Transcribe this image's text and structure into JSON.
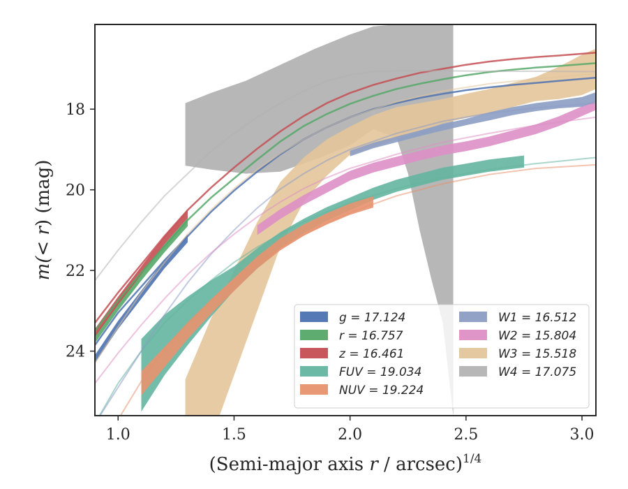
{
  "chart_data": {
    "type": "line",
    "xlabel_main": "(Semi-major axis ",
    "xlabel_var": "r",
    "xlabel_unit": " / arcsec)",
    "xlabel_exp": "1/4",
    "ylabel_main": "m(< ",
    "ylabel_var": "r",
    "ylabel_unit": ") (mag)",
    "xlim": [
      0.9,
      3.06
    ],
    "ylim": [
      25.6,
      15.9
    ],
    "y_inverted": true,
    "xticks": [
      1.0,
      1.5,
      2.0,
      2.5,
      3.0
    ],
    "xtick_labels": [
      "1.0",
      "1.5",
      "2.0",
      "2.5",
      "3.0"
    ],
    "yticks": [
      18,
      20,
      22,
      24
    ],
    "ytick_labels": [
      "18",
      "20",
      "22",
      "24"
    ],
    "grid": false,
    "legend_placement": "lower-right",
    "series": [
      {
        "key": "g",
        "name": "g = 17.124",
        "color": "#4c72b0",
        "fit": {
          "x": [
            0.9,
            1.0,
            1.1,
            1.2,
            1.3,
            1.4,
            1.5,
            1.6,
            1.7,
            1.8,
            1.9,
            2.0,
            2.1,
            2.2,
            2.3,
            2.4,
            2.5,
            2.6,
            2.7,
            2.8,
            2.9,
            3.06
          ],
          "y": [
            23.85,
            23.05,
            22.4,
            21.75,
            21.15,
            20.55,
            20.02,
            19.55,
            19.12,
            18.75,
            18.45,
            18.2,
            18.0,
            17.85,
            17.72,
            17.62,
            17.53,
            17.46,
            17.4,
            17.35,
            17.3,
            17.22
          ]
        },
        "band_x": [
          0.9,
          1.0,
          1.1,
          1.2,
          1.3
        ],
        "band_mid": [
          24.2,
          23.35,
          22.6,
          21.85,
          21.2
        ],
        "band_err": [
          0.1,
          0.1,
          0.1,
          0.1,
          0.1
        ]
      },
      {
        "key": "r",
        "name": "r = 16.757",
        "color": "#55a868",
        "fit": {
          "x": [
            0.9,
            1.0,
            1.1,
            1.2,
            1.3,
            1.4,
            1.5,
            1.6,
            1.7,
            1.8,
            1.9,
            2.0,
            2.1,
            2.2,
            2.3,
            2.4,
            2.5,
            2.6,
            2.7,
            2.8,
            2.9,
            3.06
          ],
          "y": [
            23.5,
            22.75,
            22.05,
            21.4,
            20.75,
            20.2,
            19.72,
            19.25,
            18.8,
            18.42,
            18.12,
            17.87,
            17.67,
            17.5,
            17.37,
            17.26,
            17.16,
            17.08,
            17.02,
            16.97,
            16.93,
            16.86
          ]
        },
        "band_x": [
          0.9,
          1.0,
          1.1,
          1.2,
          1.3
        ],
        "band_mid": [
          23.7,
          22.9,
          22.15,
          21.45,
          20.8
        ],
        "band_err": [
          0.1,
          0.1,
          0.1,
          0.1,
          0.1
        ]
      },
      {
        "key": "z",
        "name": "z = 16.461",
        "color": "#c44e52",
        "fit": {
          "x": [
            0.9,
            1.0,
            1.1,
            1.2,
            1.3,
            1.4,
            1.5,
            1.6,
            1.7,
            1.8,
            1.9,
            2.0,
            2.1,
            2.2,
            2.3,
            2.4,
            2.5,
            2.6,
            2.7,
            2.8,
            2.9,
            3.06
          ],
          "y": [
            23.3,
            22.55,
            21.85,
            21.15,
            20.5,
            19.95,
            19.45,
            18.98,
            18.55,
            18.17,
            17.85,
            17.6,
            17.4,
            17.24,
            17.1,
            17.0,
            16.9,
            16.82,
            16.76,
            16.71,
            16.67,
            16.6
          ]
        },
        "band_x": [
          0.9,
          1.0,
          1.1,
          1.2,
          1.3
        ],
        "band_mid": [
          23.55,
          22.75,
          22.0,
          21.25,
          20.6
        ],
        "band_err": [
          0.1,
          0.1,
          0.1,
          0.1,
          0.1
        ]
      },
      {
        "key": "FUV",
        "name": "FUV = 19.034",
        "color": "#64b5a0",
        "fit": {
          "x": [
            0.9,
            1.0,
            1.1,
            1.2,
            1.3,
            1.4,
            1.5,
            1.6,
            1.7,
            1.8,
            1.9,
            2.0,
            2.2,
            2.4,
            2.6,
            2.8,
            3.06
          ],
          "y": [
            25.8,
            24.8,
            24.0,
            23.3,
            22.75,
            22.25,
            21.8,
            21.42,
            21.1,
            20.8,
            20.55,
            20.32,
            19.97,
            19.7,
            19.5,
            19.35,
            19.2
          ]
        },
        "band_x": [
          1.1,
          1.2,
          1.3,
          1.4,
          1.5,
          1.6,
          1.7,
          1.8,
          1.9,
          2.0,
          2.1,
          2.2,
          2.3,
          2.4,
          2.5,
          2.6,
          2.75
        ],
        "band_mid": [
          24.6,
          23.85,
          23.25,
          22.7,
          22.2,
          21.7,
          21.25,
          20.9,
          20.6,
          20.35,
          20.1,
          19.9,
          19.75,
          19.6,
          19.5,
          19.4,
          19.3
        ],
        "band_err": [
          0.9,
          0.75,
          0.6,
          0.45,
          0.3,
          0.25,
          0.2,
          0.18,
          0.17,
          0.16,
          0.15,
          0.15,
          0.15,
          0.15,
          0.15,
          0.15,
          0.15
        ]
      },
      {
        "key": "NUV",
        "name": "NUV = 19.224",
        "color": "#e8926e",
        "fit": {
          "x": [
            1.0,
            1.1,
            1.2,
            1.3,
            1.4,
            1.5,
            1.6,
            1.7,
            1.8,
            1.9,
            2.0,
            2.2,
            2.4,
            2.6,
            2.8,
            3.06
          ],
          "y": [
            25.7,
            24.75,
            23.95,
            23.3,
            22.75,
            22.25,
            21.82,
            21.45,
            21.12,
            20.82,
            20.56,
            20.15,
            19.85,
            19.62,
            19.47,
            19.38
          ]
        },
        "band_x": [
          1.1,
          1.2,
          1.3,
          1.4,
          1.5,
          1.6,
          1.7,
          1.8,
          1.9,
          2.0,
          2.1
        ],
        "band_mid": [
          24.8,
          24.15,
          23.5,
          22.9,
          22.35,
          21.8,
          21.35,
          21.0,
          20.72,
          20.48,
          20.3
        ],
        "band_err": [
          0.3,
          0.25,
          0.2,
          0.18,
          0.16,
          0.15,
          0.15,
          0.14,
          0.14,
          0.14,
          0.14
        ]
      },
      {
        "key": "W1",
        "name": "W1 = 16.512",
        "color": "#8c9dc4",
        "fit": {
          "x": [
            0.9,
            1.0,
            1.1,
            1.2,
            1.3,
            1.4,
            1.5,
            1.6,
            1.7,
            1.8,
            1.9,
            2.0,
            2.2,
            2.4,
            2.6,
            2.8,
            3.06
          ],
          "y": [
            25.8,
            24.9,
            24.0,
            23.1,
            22.3,
            21.6,
            21.0,
            20.45,
            19.98,
            19.6,
            19.27,
            19.0,
            18.6,
            18.3,
            18.1,
            17.97,
            17.85
          ]
        },
        "band_x": [
          2.0,
          2.1,
          2.2,
          2.3,
          2.4,
          2.5,
          2.6,
          2.7,
          2.8,
          2.9,
          3.0,
          3.06
        ],
        "band_mid": [
          19.1,
          18.9,
          18.75,
          18.6,
          18.45,
          18.32,
          18.18,
          18.05,
          17.95,
          17.88,
          17.82,
          17.7
        ],
        "band_err": [
          0.07,
          0.07,
          0.07,
          0.07,
          0.08,
          0.08,
          0.1,
          0.1,
          0.1,
          0.1,
          0.12,
          0.12
        ]
      },
      {
        "key": "W2",
        "name": "W2 = 15.804",
        "color": "#dd8fc5",
        "fit": {
          "x": [
            0.9,
            1.0,
            1.1,
            1.2,
            1.3,
            1.4,
            1.5,
            1.6,
            1.7,
            1.8,
            1.9,
            2.0,
            2.2,
            2.4,
            2.6,
            2.8,
            3.06
          ],
          "y": [
            24.8,
            24.05,
            23.35,
            22.7,
            22.1,
            21.57,
            21.1,
            20.67,
            20.3,
            19.97,
            19.7,
            19.47,
            19.12,
            18.82,
            18.6,
            18.4,
            18.2
          ]
        },
        "band_x": [
          1.6,
          1.7,
          1.8,
          1.9,
          2.0,
          2.1,
          2.2,
          2.3,
          2.4,
          2.5,
          2.6,
          2.7,
          2.8,
          2.9,
          3.0,
          3.06
        ],
        "band_mid": [
          21.0,
          20.6,
          20.25,
          19.95,
          19.65,
          19.45,
          19.3,
          19.15,
          19.02,
          18.92,
          18.8,
          18.65,
          18.5,
          18.3,
          18.05,
          17.9
        ],
        "band_err": [
          0.12,
          0.12,
          0.12,
          0.12,
          0.12,
          0.12,
          0.12,
          0.12,
          0.12,
          0.12,
          0.12,
          0.12,
          0.12,
          0.12,
          0.12,
          0.12
        ]
      },
      {
        "key": "W3",
        "name": "W3 = 15.518",
        "color": "#e3c59a",
        "fit": {
          "x": [
            0.9,
            1.0,
            1.1,
            1.2,
            1.3,
            1.4,
            1.5,
            1.6,
            1.7,
            1.8,
            1.9,
            2.0,
            2.2,
            2.4,
            2.6,
            2.8,
            3.06
          ],
          "y": [
            24.3,
            23.4,
            22.55,
            21.8,
            21.1,
            20.5,
            19.97,
            19.5,
            19.1,
            18.75,
            18.45,
            18.2,
            17.82,
            17.55,
            17.37,
            17.25,
            17.12
          ]
        },
        "band_x": [
          1.29,
          1.4,
          1.5,
          1.6,
          1.7,
          1.8,
          1.9,
          2.0,
          2.1,
          2.2,
          2.3,
          2.4,
          2.5,
          2.6,
          2.7,
          2.8,
          2.9,
          3.0,
          3.06
        ],
        "band_mid": [
          26.2,
          24.7,
          23.3,
          21.9,
          20.6,
          19.75,
          19.2,
          18.78,
          18.55,
          18.35,
          18.2,
          18.05,
          17.92,
          17.8,
          17.65,
          17.5,
          17.35,
          17.15,
          17.0
        ],
        "band_err": [
          1.5,
          1.5,
          1.3,
          1.1,
          0.8,
          0.55,
          0.45,
          0.35,
          0.4,
          0.4,
          0.35,
          0.3,
          0.3,
          0.3,
          0.3,
          0.3,
          0.4,
          0.5,
          0.5
        ]
      },
      {
        "key": "W4",
        "name": "W4 = 17.075",
        "color": "#b3b3b3",
        "fit": {
          "x": [
            0.9,
            1.0,
            1.1,
            1.2,
            1.3,
            1.4,
            1.5,
            1.6,
            1.7,
            1.8,
            1.9,
            2.0,
            2.1,
            2.2,
            2.3,
            2.4,
            2.6,
            2.8,
            3.06
          ],
          "y": [
            22.25,
            21.5,
            20.8,
            20.15,
            19.6,
            19.05,
            18.6,
            18.2,
            17.85,
            17.55,
            17.3,
            17.15,
            17.07,
            17.05,
            17.05,
            17.05,
            17.06,
            17.06,
            17.07
          ]
        },
        "band_x": [
          1.29,
          1.4,
          1.55,
          1.7,
          1.85,
          2.0,
          2.1,
          2.2,
          2.25,
          2.3,
          2.35,
          2.4,
          2.445
        ],
        "band_upper": [
          17.85,
          17.6,
          17.3,
          16.9,
          16.5,
          16.15,
          15.95,
          15.9,
          15.9,
          15.9,
          15.9,
          15.9,
          15.9
        ],
        "band_lower": [
          19.4,
          19.5,
          19.6,
          19.55,
          19.25,
          18.9,
          18.5,
          18.7,
          19.6,
          21.0,
          22.2,
          23.3,
          25.6
        ]
      }
    ]
  }
}
